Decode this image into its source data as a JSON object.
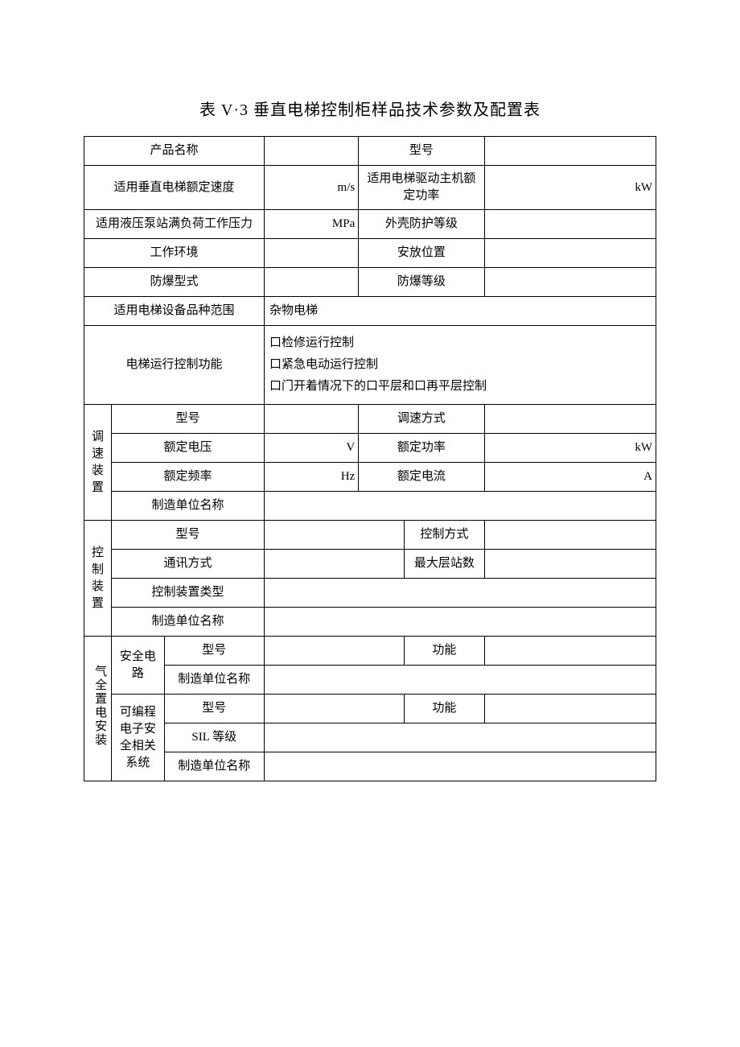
{
  "title": "表 V·3 垂直电梯控制柜样品技术参数及配置表",
  "rows": {
    "product_name": {
      "label": "产品名称",
      "value": ""
    },
    "model_no": {
      "label": "型号",
      "value": ""
    },
    "rated_speed": {
      "label": "适用垂直电梯额定速度",
      "unit": "m/s",
      "value": ""
    },
    "motor_power": {
      "label": "适用电梯驱动主机额定功率",
      "unit": "kW",
      "value": ""
    },
    "pump_pressure": {
      "label": "适用液压泵站满负荷工作压力",
      "unit": "MPa",
      "value": ""
    },
    "shell_protect": {
      "label": "外壳防护等级",
      "value": ""
    },
    "work_env": {
      "label": "工作环境",
      "value": ""
    },
    "placement": {
      "label": "安放位置",
      "value": ""
    },
    "explosion_type": {
      "label": "防爆型式",
      "value": ""
    },
    "explosion_grade": {
      "label": "防爆等级",
      "value": ""
    },
    "equip_range": {
      "label": "适用电梯设备品种范围",
      "value": "杂物电梯"
    },
    "run_control": {
      "label": "电梯运行控制功能",
      "value": "口检修运行控制\n口紧急电动运行控制\n口门开着情况下的口平层和口再平层控制"
    }
  },
  "speed_device": {
    "group": "调速装置",
    "model": {
      "label": "型号",
      "value": ""
    },
    "speed_mode": {
      "label": "调速方式",
      "value": ""
    },
    "rated_voltage": {
      "label": "额定电压",
      "unit": "V",
      "value": ""
    },
    "rated_power": {
      "label": "额定功率",
      "unit": "kW",
      "value": ""
    },
    "rated_freq": {
      "label": "额定频率",
      "unit": "Hz",
      "value": ""
    },
    "rated_current": {
      "label": "额定电流",
      "unit": "A",
      "value": ""
    },
    "maker": {
      "label": "制造单位名称",
      "value": ""
    }
  },
  "control_device": {
    "group": "控制装置",
    "model": {
      "label": "型号",
      "value": ""
    },
    "control_mode": {
      "label": "控制方式",
      "value": ""
    },
    "comm_mode": {
      "label": "通讯方式",
      "value": ""
    },
    "max_floors": {
      "label": "最大层站数",
      "value": ""
    },
    "device_type": {
      "label": "控制装置类型",
      "value": ""
    },
    "maker": {
      "label": "制造单位名称",
      "value": ""
    }
  },
  "safety": {
    "group": "气全置电安装",
    "circuit": {
      "sub": "安全电路",
      "model": {
        "label": "型号",
        "value": ""
      },
      "function": {
        "label": "功能",
        "value": ""
      },
      "maker": {
        "label": "制造单位名称",
        "value": ""
      }
    },
    "pesr": {
      "sub": "可编程电子安全相关系统",
      "model": {
        "label": "型号",
        "value": ""
      },
      "function": {
        "label": "功能",
        "value": ""
      },
      "sil": {
        "label": "SIL 等级",
        "value": ""
      },
      "maker": {
        "label": "制造单位名称",
        "value": ""
      }
    }
  },
  "style": {
    "border_color": "#000000",
    "background_color": "#ffffff",
    "title_fontsize": 20,
    "cell_fontsize": 15
  }
}
